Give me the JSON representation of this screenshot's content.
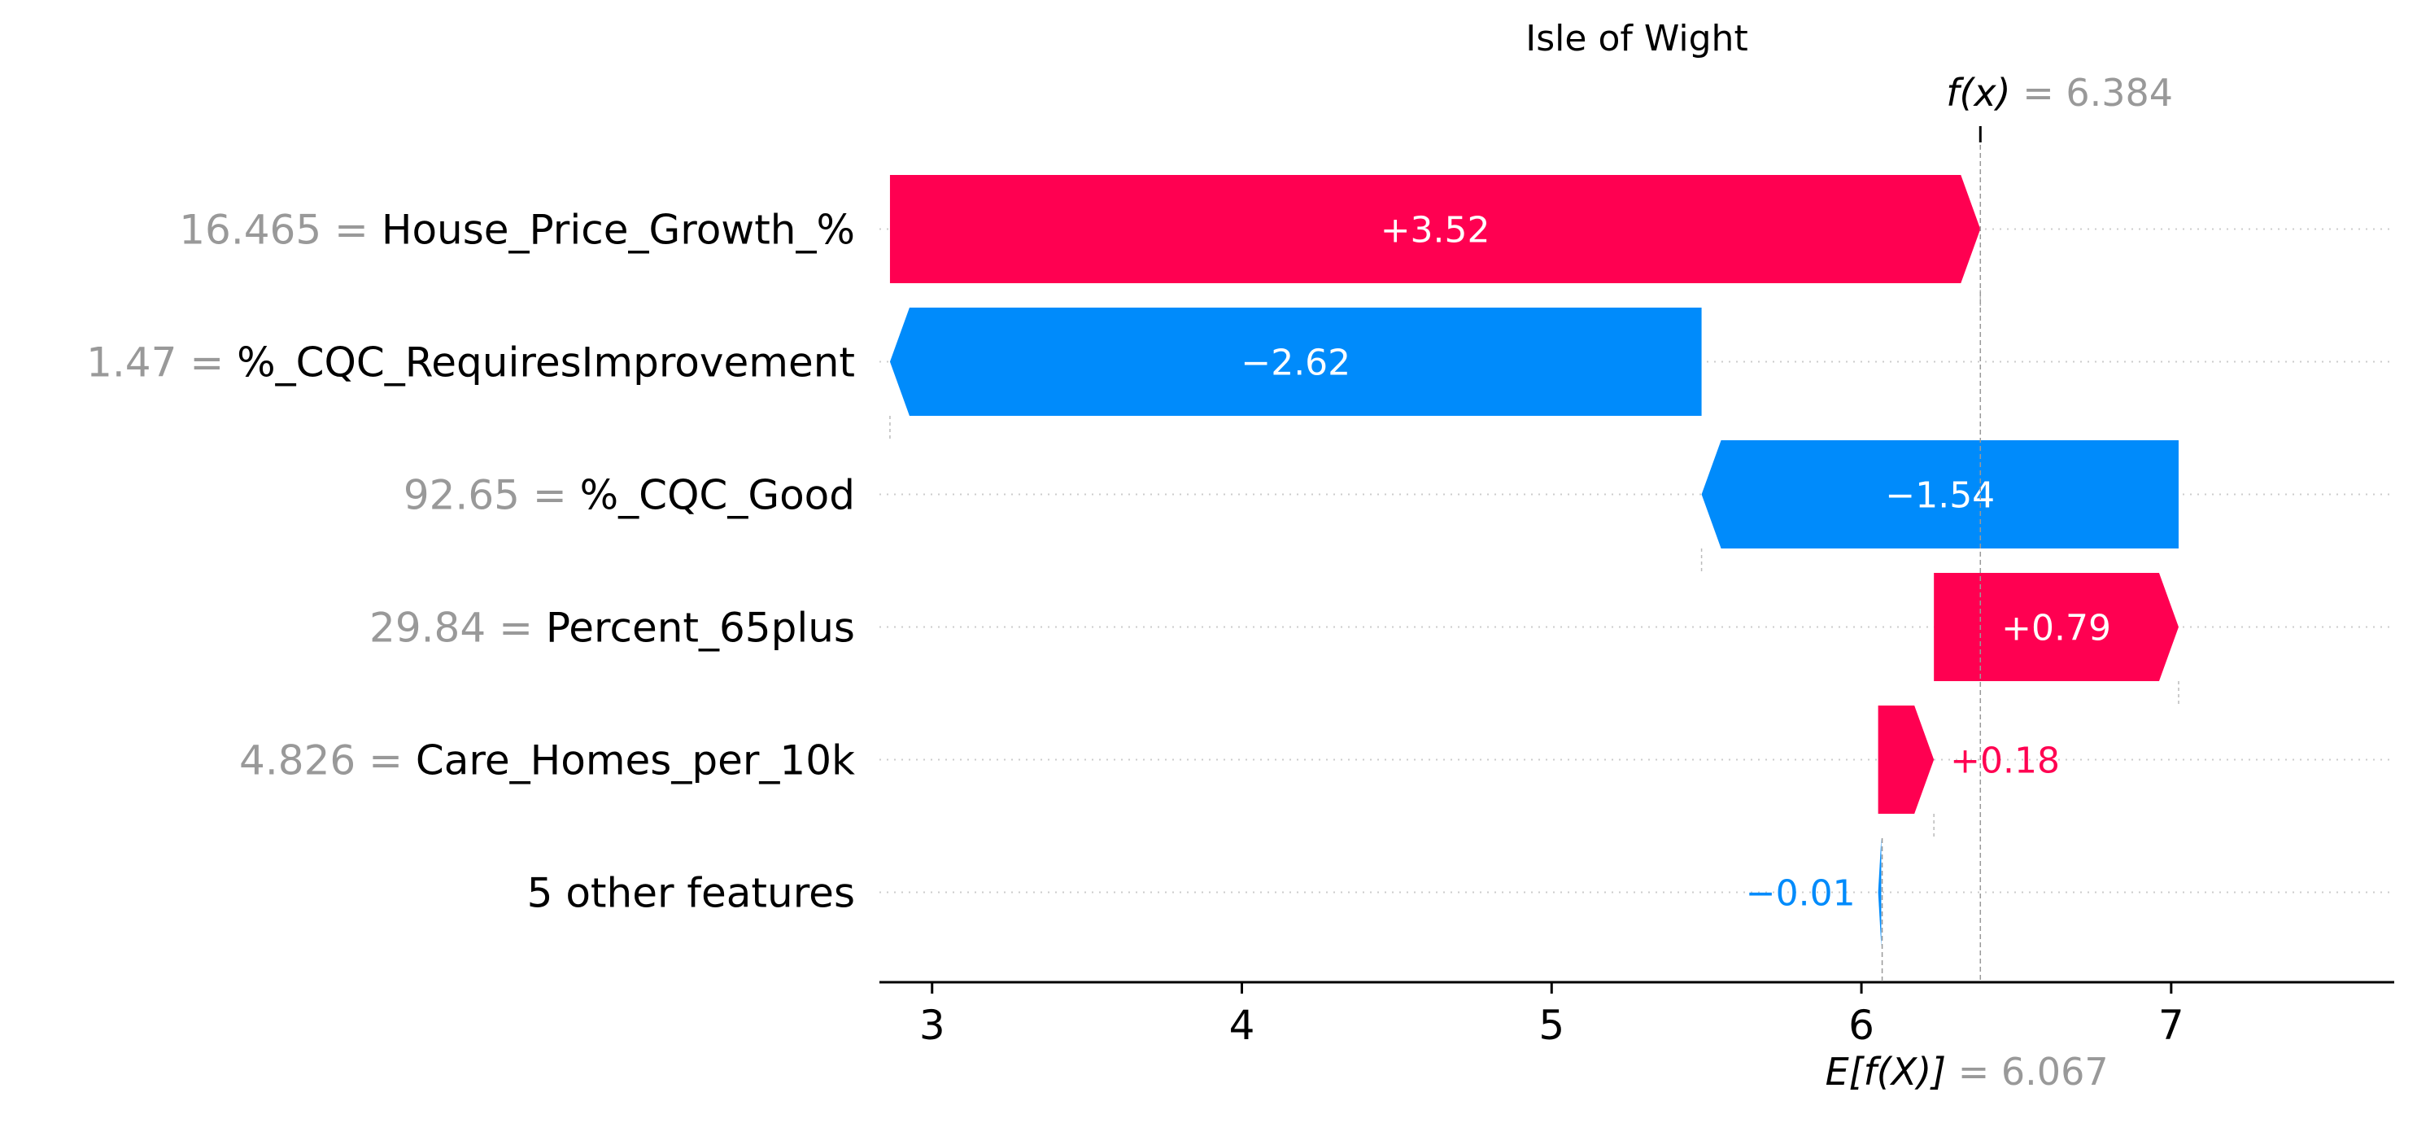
{
  "chart_data": {
    "type": "waterfall",
    "title": "Isle of Wight",
    "base_value": {
      "label_prefix": "E[f(X)]",
      "label_eq": " = ",
      "value_text": "6.067",
      "value": 6.067
    },
    "output_value": {
      "label_prefix": "f(x)",
      "label_eq": " = ",
      "value_text": "6.384",
      "value": 6.384
    },
    "features": [
      {
        "value_text": "16.465",
        "name": "House_Price_Growth_%",
        "contribution": 3.52,
        "label": "+3.52",
        "start": 2.864,
        "end": 6.384
      },
      {
        "value_text": "1.47",
        "name": "%_CQC_RequiresImprovement",
        "contribution": -2.62,
        "label": "−2.62",
        "start": 5.484,
        "end": 2.864
      },
      {
        "value_text": "92.65",
        "name": "%_CQC_Good",
        "contribution": -1.54,
        "label": "−1.54",
        "start": 7.024,
        "end": 5.484
      },
      {
        "value_text": "29.84",
        "name": "Percent_65plus",
        "contribution": 0.79,
        "label": "+0.79",
        "start": 6.234,
        "end": 7.024
      },
      {
        "value_text": "4.826",
        "name": "Care_Homes_per_10k",
        "contribution": 0.18,
        "label": "+0.18",
        "start": 6.054,
        "end": 6.234
      },
      {
        "value_text": "",
        "name": "5 other features",
        "contribution": -0.01,
        "label": "−0.01",
        "start": 6.064,
        "end": 6.054
      }
    ],
    "x_ticks": [
      3,
      4,
      5,
      6,
      7
    ],
    "xlim": [
      2.83,
      7.72
    ],
    "grid": "dotted horizontal row lines",
    "colors": {
      "positive": "#ff0051",
      "negative": "#008bfb",
      "muted_text": "#999999",
      "text": "#000000",
      "bar_label": "#ffffff"
    }
  }
}
